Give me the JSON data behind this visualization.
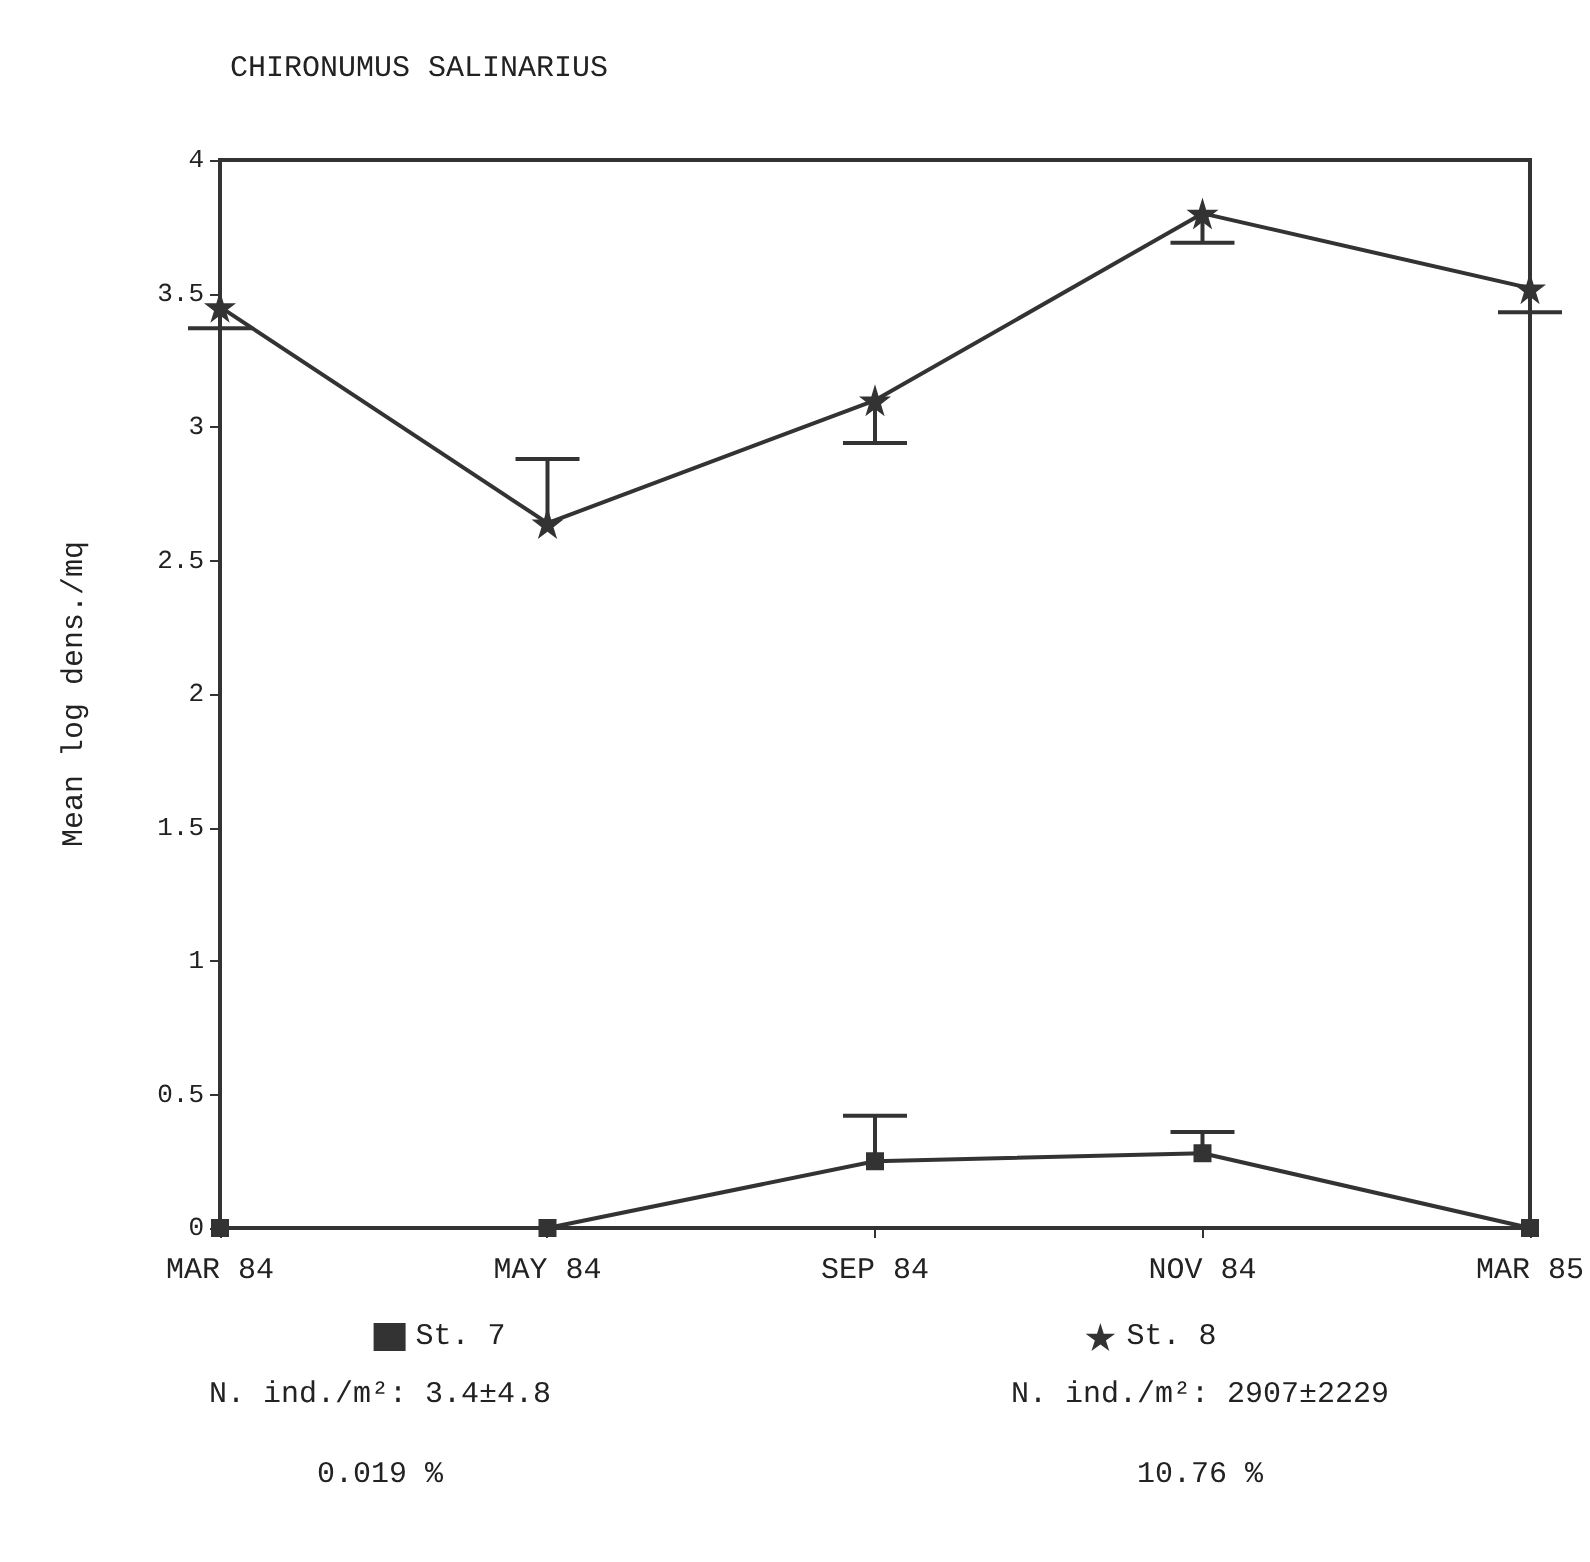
{
  "chart_data": {
    "type": "line",
    "title": "CHIRONUMUS SALINARIUS",
    "ylabel": "Mean log dens./mq",
    "categories": [
      "MAR 84",
      "MAY 84",
      "SEP 84",
      "NOV 84",
      "MAR 85"
    ],
    "series": [
      {
        "name": "St. 7",
        "color": "#333333",
        "marker": "square",
        "values": [
          0,
          0,
          0.25,
          0.28,
          0
        ],
        "errors": [
          null,
          null,
          [
            0.25,
            0.42
          ],
          [
            0.28,
            0.36
          ],
          null
        ]
      },
      {
        "name": "St. 8",
        "color": "#333333",
        "marker": "star",
        "values": [
          3.45,
          2.64,
          3.1,
          3.8,
          3.52
        ],
        "errors": [
          [
            3.37,
            3.45
          ],
          [
            2.64,
            2.88
          ],
          [
            2.94,
            3.1
          ],
          [
            3.69,
            3.8
          ],
          [
            3.43,
            3.52
          ]
        ]
      }
    ],
    "ylim": [
      0,
      4
    ],
    "yticks": [
      0,
      0.5,
      1,
      {
        "value": 1.5,
        "label": "1.5"
      },
      2,
      {
        "value": 2.5,
        "label": "2.5"
      },
      3,
      3.5,
      4
    ],
    "grid": false,
    "legend": "bottom",
    "line_style": "solid",
    "annotations": [
      "N. ind./m²: 3.4±4.8",
      "N. ind./m²: 2907±2229",
      "0.019 %",
      "10.76 %"
    ]
  }
}
